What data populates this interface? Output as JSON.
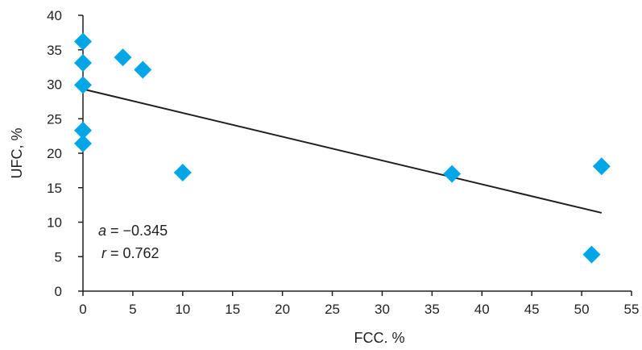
{
  "chart_data": {
    "type": "scatter",
    "xlabel": "FCC. %",
    "ylabel": "UFC, %",
    "xlim": [
      0,
      55
    ],
    "ylim": [
      0,
      40
    ],
    "xticks": [
      0,
      5,
      10,
      15,
      20,
      25,
      30,
      35,
      40,
      45,
      50,
      55
    ],
    "yticks": [
      0,
      5,
      10,
      15,
      20,
      25,
      30,
      35,
      40
    ],
    "grid": false,
    "marker": "diamond",
    "marker_color": "#00a6e6",
    "points": [
      {
        "x": 0,
        "y": 36.2
      },
      {
        "x": 0,
        "y": 33.1
      },
      {
        "x": 0,
        "y": 29.9
      },
      {
        "x": 0,
        "y": 23.3
      },
      {
        "x": 0,
        "y": 21.4
      },
      {
        "x": 4,
        "y": 33.9
      },
      {
        "x": 6,
        "y": 32.1
      },
      {
        "x": 10,
        "y": 17.2
      },
      {
        "x": 37,
        "y": 17.0
      },
      {
        "x": 51,
        "y": 5.3
      },
      {
        "x": 52,
        "y": 18.1
      }
    ],
    "trendline": {
      "x": [
        0,
        52
      ],
      "y": [
        29.3,
        11.35
      ],
      "color": "#231f20"
    },
    "annotations": {
      "a_label": "a",
      "a_value": " = −0.345",
      "r_label": "r",
      "r_value": " = 0.762"
    }
  }
}
